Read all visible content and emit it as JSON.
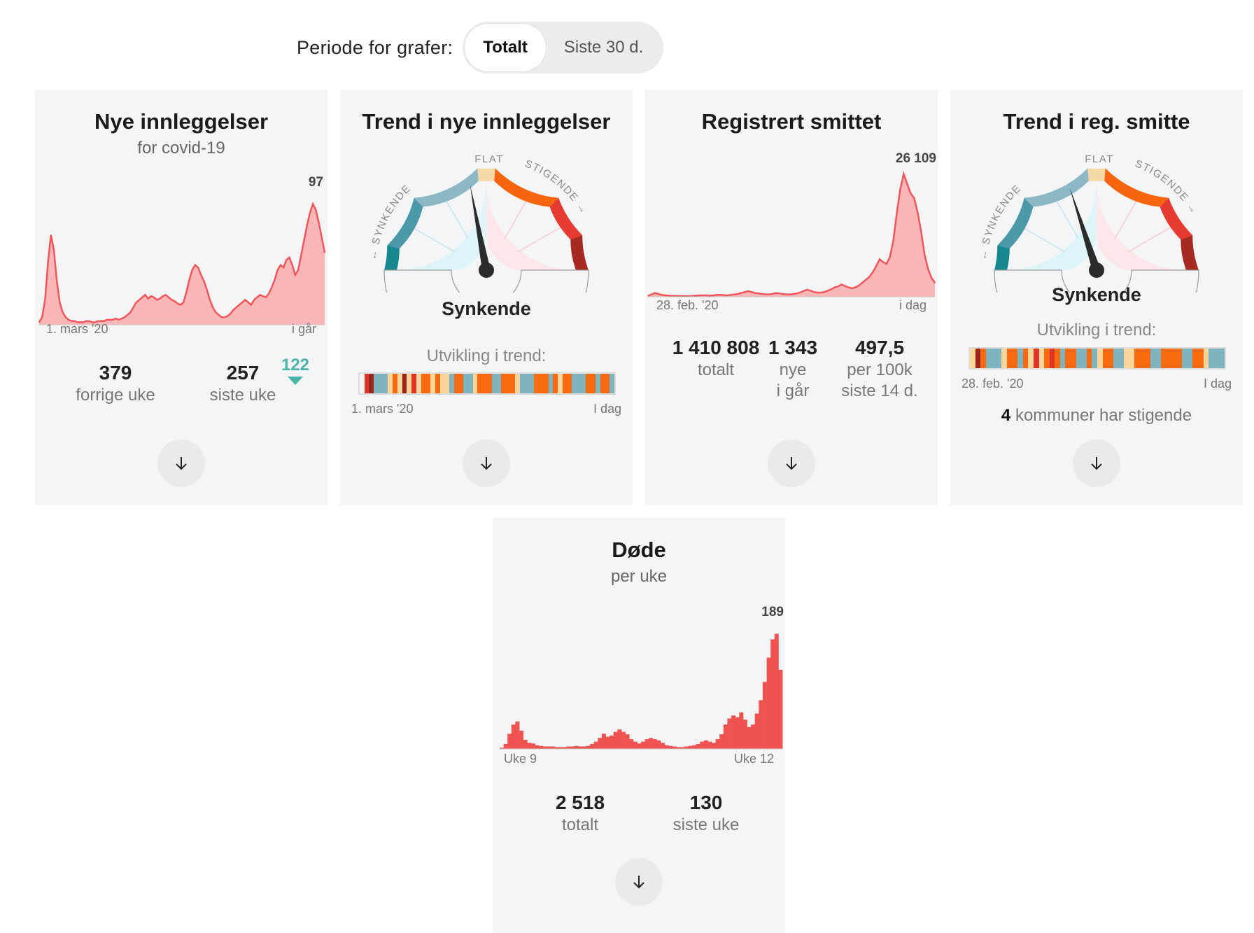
{
  "period": {
    "label": "Periode for grafer:",
    "options": [
      "Totalt",
      "Siste 30 d."
    ],
    "selected": "Totalt"
  },
  "colors": {
    "accent": "#f0565a",
    "area_fill": "#fbb6b8",
    "bars": "#ef5350",
    "card_bg": "#f4f5f6",
    "down_arrow": "#4cb3a8"
  },
  "cards": {
    "admissions": {
      "title": "Nye innleggelser",
      "subtitle": "for covid-19",
      "peak": "97",
      "x_start": "1. mars '20",
      "x_end": "i går",
      "stats": [
        {
          "value": "379",
          "label": "forrige uke"
        },
        {
          "value": "257",
          "label": "siste uke"
        }
      ],
      "delta": "122",
      "delta_icon": "triangle-down-icon"
    },
    "admissions_trend": {
      "title": "Trend i nye innleggelser",
      "gauge": {
        "left": "← SYNKENDE",
        "top": "FLAT",
        "right": "STIGENDE →",
        "needle_value": -0.12
      },
      "label": "Synkende",
      "caption": "Utvikling i trend:",
      "x_start": "1. mars '20",
      "x_end": "I dag"
    },
    "infected": {
      "title": "Registrert smittet",
      "peak": "26 109",
      "x_start": "28. feb. '20",
      "x_end": "i dag",
      "stats": [
        {
          "value": "1 410 808",
          "label": "totalt"
        },
        {
          "value": "1 343",
          "label": "nye\ni går"
        },
        {
          "value": "497,5",
          "label": "per 100k\nsiste 14 d."
        }
      ]
    },
    "infected_trend": {
      "title": "Trend i reg. smitte",
      "gauge": {
        "left": "← SYNKENDE",
        "top": "FLAT",
        "right": "STIGENDE →",
        "needle_value": -0.2
      },
      "label": "Synkende",
      "caption": "Utvikling i trend:",
      "x_start": "28. feb. '20",
      "x_end": "I dag",
      "kommuner_count": "4",
      "kommuner_text": "kommuner har stigende"
    },
    "deaths": {
      "title": "Døde",
      "subtitle": "per uke",
      "peak": "189",
      "x_start": "Uke 9",
      "x_end": "Uke 12",
      "stats": [
        {
          "value": "2 518",
          "label": "totalt"
        },
        {
          "value": "130",
          "label": "siste uke"
        }
      ]
    }
  },
  "chart_data": [
    {
      "type": "area",
      "title": "Nye innleggelser",
      "ylim": [
        0,
        100
      ],
      "values": [
        2,
        6,
        20,
        50,
        72,
        60,
        35,
        18,
        10,
        6,
        4,
        3,
        3,
        2,
        2,
        2,
        3,
        3,
        2,
        2,
        3,
        3,
        3,
        4,
        4,
        4,
        5,
        4,
        5,
        6,
        8,
        10,
        14,
        18,
        20,
        22,
        24,
        21,
        23,
        22,
        20,
        21,
        23,
        24,
        22,
        20,
        19,
        17,
        16,
        18,
        26,
        36,
        44,
        48,
        46,
        40,
        35,
        28,
        20,
        14,
        10,
        8,
        6,
        6,
        7,
        9,
        12,
        14,
        16,
        18,
        20,
        18,
        16,
        20,
        22,
        24,
        23,
        22,
        25,
        30,
        36,
        44,
        48,
        46,
        52,
        54,
        48,
        40,
        44,
        56,
        68,
        80,
        90,
        97,
        92,
        82,
        70,
        58
      ]
    },
    {
      "type": "area",
      "title": "Registrert smittet",
      "ylim": [
        0,
        28000
      ],
      "values": [
        200,
        500,
        800,
        600,
        400,
        300,
        250,
        200,
        200,
        150,
        150,
        150,
        150,
        200,
        250,
        300,
        300,
        300,
        250,
        300,
        400,
        400,
        350,
        300,
        400,
        500,
        600,
        800,
        1000,
        1200,
        1000,
        800,
        700,
        600,
        500,
        500,
        600,
        800,
        700,
        600,
        500,
        500,
        600,
        700,
        900,
        1200,
        1500,
        1300,
        1000,
        900,
        900,
        1000,
        1300,
        1600,
        2000,
        2200,
        2600,
        2300,
        2000,
        1800,
        2000,
        2400,
        3000,
        3600,
        4200,
        5200,
        6500,
        8000,
        7400,
        7000,
        8500,
        12000,
        18000,
        23000,
        26109,
        24000,
        22000,
        21000,
        18000,
        14000,
        9000,
        6000,
        4000,
        3000
      ]
    },
    {
      "type": "bar",
      "title": "Døde",
      "ylim": [
        0,
        200
      ],
      "values": [
        2,
        8,
        25,
        40,
        45,
        30,
        15,
        10,
        9,
        6,
        5,
        4,
        4,
        4,
        3,
        3,
        3,
        4,
        4,
        5,
        4,
        4,
        5,
        8,
        12,
        18,
        25,
        20,
        22,
        28,
        32,
        28,
        24,
        16,
        12,
        9,
        12,
        16,
        18,
        16,
        14,
        10,
        6,
        5,
        4,
        3,
        3,
        4,
        5,
        6,
        8,
        12,
        14,
        12,
        10,
        16,
        24,
        40,
        50,
        55,
        52,
        60,
        48,
        36,
        40,
        58,
        80,
        110,
        150,
        180,
        189,
        130
      ]
    }
  ]
}
